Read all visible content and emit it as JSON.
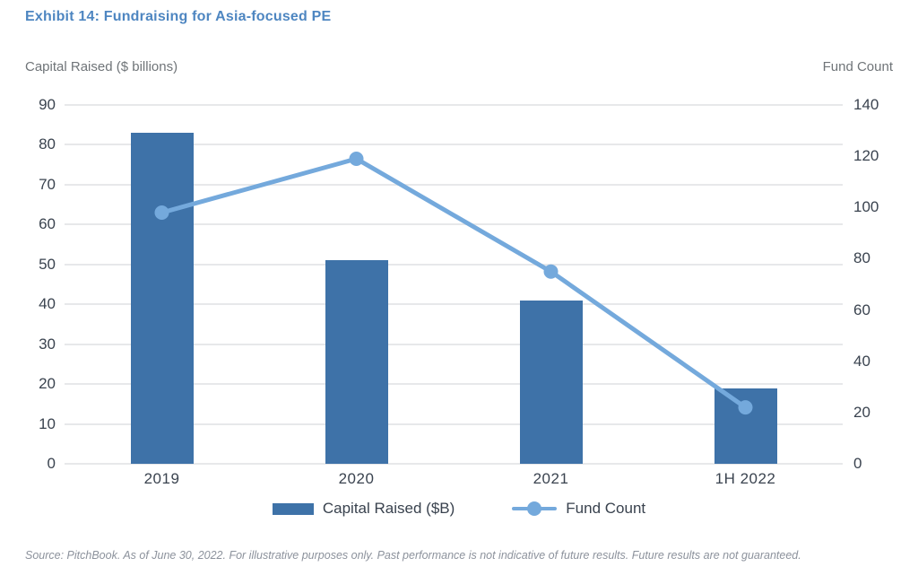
{
  "title": "Exhibit 14: Fundraising for Asia-focused PE",
  "axes": {
    "left_title": "Capital Raised ($ billions)",
    "right_title": "Fund Count"
  },
  "chart_data": {
    "type": "bar",
    "subtype": "dual-axis combo (bars + line)",
    "categories": [
      "2019",
      "2020",
      "2021",
      "1H 2022"
    ],
    "series": [
      {
        "name": "Capital Raised ($B)",
        "type": "bar",
        "axis": "left",
        "values": [
          83,
          51,
          41,
          19
        ],
        "color": "#3E72A8"
      },
      {
        "name": "Fund Count",
        "type": "line",
        "axis": "right",
        "values": [
          98,
          119,
          75,
          22
        ],
        "color": "#74A9DC"
      }
    ],
    "title": "Exhibit 14: Fundraising for Asia-focused PE",
    "left_axis": {
      "label": "Capital Raised ($ billions)",
      "min": 0,
      "max": 90,
      "step": 10
    },
    "right_axis": {
      "label": "Fund Count",
      "min": 0,
      "max": 140,
      "step": 20
    },
    "grid": true,
    "legend_position": "bottom"
  },
  "legend": [
    {
      "label": "Capital Raised ($B)",
      "marker": "bar-swatch"
    },
    {
      "label": "Fund Count",
      "marker": "line-dot"
    }
  ],
  "footer": {
    "source": "Source: PitchBook. As of June 30, 2022. For illustrative purposes only. Past performance is not indicative of future results. Future results are not guaranteed."
  },
  "colors": {
    "bar": "#3E72A8",
    "line": "#74A9DC",
    "title": "#4E86C1",
    "tick_text": "#3A434F",
    "axis_title_text": "#6F7478",
    "gridline": "#E7E8EA",
    "source_text": "#8C929C"
  }
}
